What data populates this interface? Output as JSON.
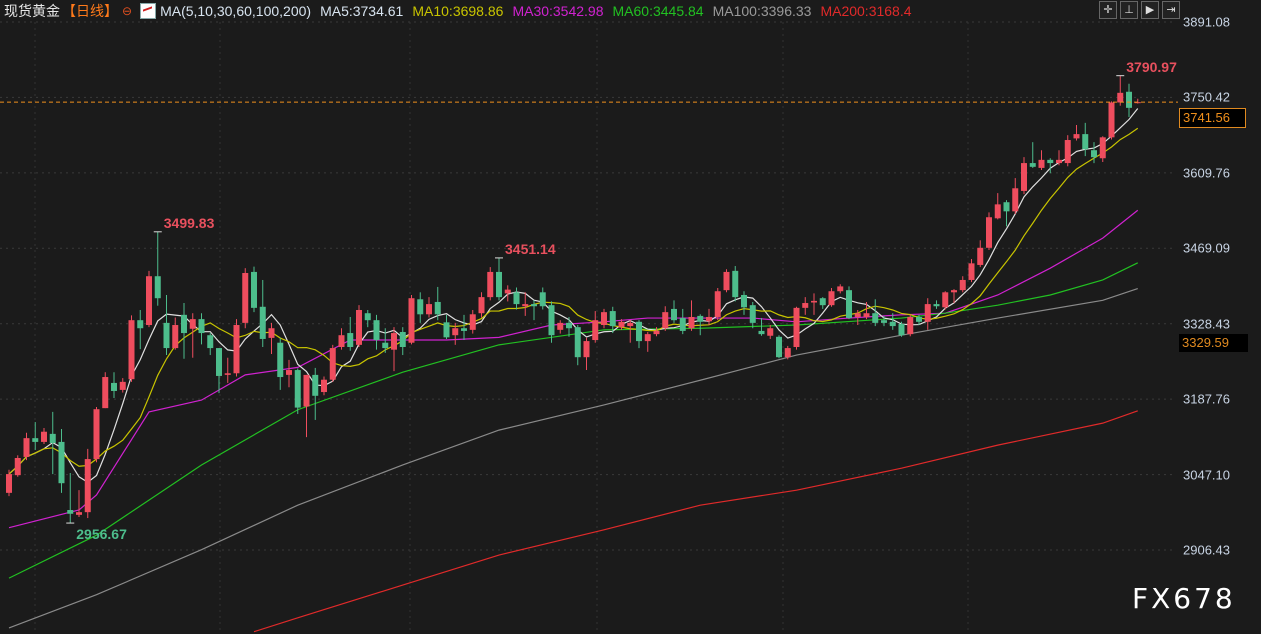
{
  "header": {
    "instrument": "现货黄金",
    "period": "【日线】",
    "ma_params": "MA(5,10,30,60,100,200)",
    "ma5": "MA5:3734.61",
    "ma10": "MA10:3698.86",
    "ma30": "MA30:3542.98",
    "ma60": "MA60:3445.84",
    "ma100": "MA100:3396.33",
    "ma200": "MA200:3168.4"
  },
  "toolbar": [
    "crosshair-icon",
    "range-icon",
    "play-icon",
    "jump-end-icon"
  ],
  "logo": "FX678",
  "colors": {
    "up": "#ef4d5e",
    "down": "#4dbd8c",
    "ma5": "#e0e0e0",
    "ma10": "#c8c400",
    "ma30": "#d022d0",
    "ma60": "#22c022",
    "ma100": "#8a8a8a",
    "ma200": "#e02a2a",
    "background": "#1b1b1b",
    "last_price": "#f0901c"
  },
  "chart_data": {
    "type": "candlestick",
    "ylim": [
      2906.43,
      3891.08
    ],
    "y_ticks": [
      "3891.08",
      "3750.42",
      "3609.76",
      "3469.09",
      "3328.43",
      "3187.76",
      "3047.10",
      "2906.43"
    ],
    "grid": true,
    "last_price": "3741.56",
    "crosshair_price": "3329.59",
    "annotations": [
      {
        "index": 17,
        "text": "3499.83",
        "type": "high"
      },
      {
        "index": 7,
        "text": "2956.67",
        "type": "low"
      },
      {
        "index": 56,
        "text": "3451.14",
        "type": "high"
      },
      {
        "index": 127,
        "text": "3790.97",
        "type": "high"
      }
    ],
    "ohlc": [
      [
        3013,
        3056,
        3007,
        3048
      ],
      [
        3046,
        3083,
        3043,
        3078
      ],
      [
        3080,
        3125,
        3074,
        3115
      ],
      [
        3115,
        3145,
        3093,
        3108
      ],
      [
        3108,
        3134,
        3104,
        3127
      ],
      [
        3123,
        3164,
        3048,
        3106
      ],
      [
        3108,
        3132,
        3013,
        3031
      ],
      [
        2981,
        3050,
        2956.67,
        2974
      ],
      [
        2972,
        3018,
        2968,
        2977
      ],
      [
        2977,
        3095,
        2966,
        3076
      ],
      [
        3076,
        3173,
        3070,
        3169
      ],
      [
        3171,
        3238,
        3171,
        3229
      ],
      [
        3218,
        3238,
        3190,
        3203
      ],
      [
        3205,
        3227,
        3200,
        3220
      ],
      [
        3225,
        3344,
        3220,
        3335
      ],
      [
        3335,
        3354,
        3281,
        3320
      ],
      [
        3326,
        3427,
        3322,
        3417
      ],
      [
        3417,
        3499.83,
        3362,
        3376
      ],
      [
        3330,
        3382,
        3270,
        3283
      ],
      [
        3283,
        3340,
        3280,
        3326
      ],
      [
        3345,
        3367,
        3263,
        3311
      ],
      [
        3319,
        3348,
        3265,
        3337
      ],
      [
        3337,
        3348,
        3290,
        3311
      ],
      [
        3307,
        3311,
        3270,
        3283
      ],
      [
        3283,
        3283,
        3199,
        3231
      ],
      [
        3233,
        3265,
        3218,
        3236
      ],
      [
        3236,
        3337,
        3230,
        3326
      ],
      [
        3330,
        3432,
        3320,
        3423
      ],
      [
        3425,
        3435,
        3350,
        3358
      ],
      [
        3360,
        3410,
        3285,
        3300
      ],
      [
        3302,
        3330,
        3272,
        3320
      ],
      [
        3293,
        3302,
        3205,
        3229
      ],
      [
        3233,
        3261,
        3210,
        3242
      ],
      [
        3242,
        3245,
        3160,
        3172
      ],
      [
        3174,
        3233,
        3117,
        3233
      ],
      [
        3233,
        3246,
        3149,
        3194
      ],
      [
        3201,
        3230,
        3195,
        3224
      ],
      [
        3224,
        3289,
        3220,
        3283
      ],
      [
        3285,
        3320,
        3280,
        3307
      ],
      [
        3311,
        3341,
        3278,
        3285
      ],
      [
        3289,
        3363,
        3285,
        3354
      ],
      [
        3348,
        3354,
        3322,
        3335
      ],
      [
        3335,
        3345,
        3280,
        3298
      ],
      [
        3293,
        3320,
        3274,
        3283
      ],
      [
        3280,
        3322,
        3240,
        3311
      ],
      [
        3313,
        3322,
        3270,
        3285
      ],
      [
        3293,
        3382,
        3290,
        3376
      ],
      [
        3374,
        3387,
        3330,
        3346
      ],
      [
        3346,
        3378,
        3340,
        3365
      ],
      [
        3369,
        3397,
        3335,
        3346
      ],
      [
        3331,
        3345,
        3300,
        3303
      ],
      [
        3307,
        3330,
        3289,
        3320
      ],
      [
        3320,
        3345,
        3298,
        3315
      ],
      [
        3317,
        3354,
        3310,
        3346
      ],
      [
        3348,
        3387,
        3340,
        3378
      ],
      [
        3378,
        3434,
        3372,
        3425
      ],
      [
        3425,
        3451.14,
        3372,
        3378
      ],
      [
        3385,
        3400,
        3370,
        3392
      ],
      [
        3387,
        3396,
        3355,
        3365
      ],
      [
        3361,
        3387,
        3343,
        3365
      ],
      [
        3365,
        3372,
        3335,
        3361
      ],
      [
        3387,
        3396,
        3355,
        3361
      ],
      [
        3363,
        3370,
        3293,
        3307
      ],
      [
        3317,
        3335,
        3310,
        3330
      ],
      [
        3330,
        3341,
        3304,
        3320
      ],
      [
        3322,
        3326,
        3251,
        3266
      ],
      [
        3266,
        3302,
        3242,
        3296
      ],
      [
        3298,
        3352,
        3293,
        3335
      ],
      [
        3326,
        3356,
        3320,
        3350
      ],
      [
        3352,
        3360,
        3311,
        3324
      ],
      [
        3322,
        3337,
        3317,
        3332
      ],
      [
        3324,
        3335,
        3293,
        3330
      ],
      [
        3332,
        3335,
        3283,
        3296
      ],
      [
        3296,
        3313,
        3276,
        3309
      ],
      [
        3309,
        3322,
        3305,
        3315
      ],
      [
        3320,
        3361,
        3315,
        3350
      ],
      [
        3356,
        3372,
        3330,
        3335
      ],
      [
        3339,
        3356,
        3309,
        3315
      ],
      [
        3320,
        3372,
        3315,
        3341
      ],
      [
        3343,
        3346,
        3307,
        3332
      ],
      [
        3333,
        3356,
        3326,
        3341
      ],
      [
        3341,
        3395,
        3335,
        3389
      ],
      [
        3391,
        3430,
        3387,
        3425
      ],
      [
        3427,
        3436,
        3370,
        3378
      ],
      [
        3382,
        3389,
        3345,
        3359
      ],
      [
        3363,
        3369,
        3320,
        3330
      ],
      [
        3315,
        3339,
        3306,
        3309
      ],
      [
        3306,
        3326,
        3300,
        3320
      ],
      [
        3304,
        3307,
        3264,
        3266
      ],
      [
        3266,
        3287,
        3262,
        3283
      ],
      [
        3285,
        3360,
        3280,
        3358
      ],
      [
        3358,
        3378,
        3345,
        3367
      ],
      [
        3368,
        3385,
        3345,
        3371
      ],
      [
        3376,
        3378,
        3356,
        3363
      ],
      [
        3363,
        3395,
        3360,
        3389
      ],
      [
        3389,
        3402,
        3385,
        3398
      ],
      [
        3391,
        3398,
        3337,
        3339
      ],
      [
        3341,
        3354,
        3326,
        3348
      ],
      [
        3341,
        3369,
        3337,
        3348
      ],
      [
        3348,
        3374,
        3324,
        3330
      ],
      [
        3335,
        3343,
        3324,
        3330
      ],
      [
        3332,
        3348,
        3317,
        3324
      ],
      [
        3328,
        3332,
        3304,
        3307
      ],
      [
        3309,
        3345,
        3305,
        3341
      ],
      [
        3341,
        3345,
        3326,
        3332
      ],
      [
        3332,
        3376,
        3317,
        3365
      ],
      [
        3365,
        3372,
        3356,
        3361
      ],
      [
        3359,
        3389,
        3355,
        3387
      ],
      [
        3387,
        3393,
        3367,
        3391
      ],
      [
        3391,
        3417,
        3387,
        3410
      ],
      [
        3410,
        3449,
        3406,
        3441
      ],
      [
        3438,
        3484,
        3434,
        3470
      ],
      [
        3470,
        3536,
        3466,
        3527
      ],
      [
        3525,
        3572,
        3523,
        3551
      ],
      [
        3555,
        3559,
        3510,
        3538
      ],
      [
        3538,
        3600,
        3533,
        3581
      ],
      [
        3576,
        3639,
        3570,
        3628
      ],
      [
        3628,
        3667,
        3619,
        3621
      ],
      [
        3619,
        3652,
        3615,
        3634
      ],
      [
        3634,
        3637,
        3609,
        3628
      ],
      [
        3628,
        3652,
        3624,
        3634
      ],
      [
        3628,
        3680,
        3622,
        3671
      ],
      [
        3674,
        3699,
        3670,
        3682
      ],
      [
        3682,
        3703,
        3641,
        3654
      ],
      [
        3652,
        3667,
        3628,
        3639
      ],
      [
        3637,
        3678,
        3630,
        3676
      ],
      [
        3676,
        3743,
        3672,
        3741
      ],
      [
        3741,
        3790.97,
        3735,
        3759
      ],
      [
        3761,
        3776,
        3714,
        3731
      ],
      [
        3741,
        3748,
        3739,
        3741.56
      ]
    ],
    "ma_series": [
      {
        "name": "MA30",
        "color_key": "ma30",
        "points": [
          [
            0,
            2948
          ],
          [
            8,
            2981
          ],
          [
            10,
            3009
          ],
          [
            16,
            3164
          ],
          [
            22,
            3186
          ],
          [
            27,
            3233
          ],
          [
            33,
            3247
          ],
          [
            39,
            3298
          ],
          [
            45,
            3298
          ],
          [
            50,
            3298
          ],
          [
            56,
            3303
          ],
          [
            62,
            3326
          ],
          [
            68,
            3332
          ],
          [
            73,
            3339
          ],
          [
            79,
            3339
          ],
          [
            85,
            3339
          ],
          [
            90,
            3332
          ],
          [
            96,
            3339
          ],
          [
            102,
            3345
          ],
          [
            107,
            3348
          ],
          [
            113,
            3382
          ],
          [
            119,
            3432
          ],
          [
            125,
            3488
          ],
          [
            129,
            3540
          ]
        ]
      },
      {
        "name": "MA60",
        "color_key": "ma60",
        "points": [
          [
            0,
            2854
          ],
          [
            10,
            2934
          ],
          [
            22,
            3065
          ],
          [
            33,
            3168
          ],
          [
            45,
            3238
          ],
          [
            56,
            3289
          ],
          [
            68,
            3317
          ],
          [
            79,
            3320
          ],
          [
            90,
            3326
          ],
          [
            102,
            3339
          ],
          [
            107,
            3348
          ],
          [
            113,
            3363
          ],
          [
            119,
            3382
          ],
          [
            125,
            3410
          ],
          [
            129,
            3442
          ]
        ]
      },
      {
        "name": "MA100",
        "color_key": "ma100",
        "points": [
          [
            0,
            2761
          ],
          [
            10,
            2823
          ],
          [
            22,
            2907
          ],
          [
            33,
            2990
          ],
          [
            45,
            3065
          ],
          [
            56,
            3130
          ],
          [
            68,
            3177
          ],
          [
            79,
            3223
          ],
          [
            90,
            3270
          ],
          [
            102,
            3307
          ],
          [
            113,
            3339
          ],
          [
            125,
            3372
          ],
          [
            129,
            3394
          ]
        ]
      },
      {
        "name": "MA200",
        "color_key": "ma200",
        "points": [
          [
            28,
            2754
          ],
          [
            33,
            2780
          ],
          [
            45,
            2841
          ],
          [
            56,
            2897
          ],
          [
            68,
            2944
          ],
          [
            79,
            2990
          ],
          [
            90,
            3018
          ],
          [
            102,
            3059
          ],
          [
            113,
            3102
          ],
          [
            125,
            3143
          ],
          [
            129,
            3166
          ]
        ]
      }
    ]
  }
}
